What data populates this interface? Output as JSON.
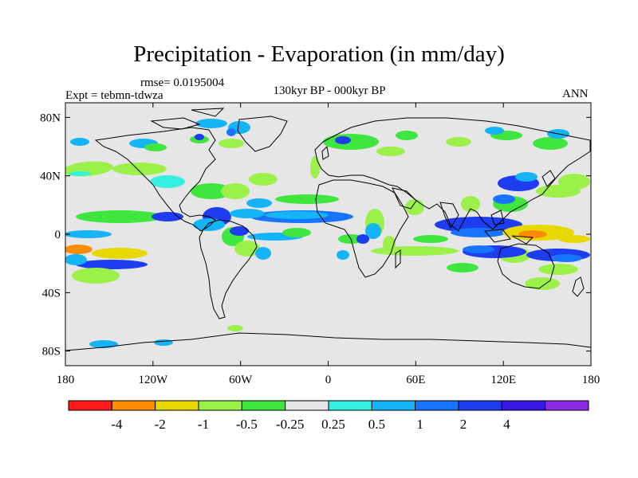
{
  "title": "Precipitation - Evaporation (in mm/day)",
  "rmse": "rmse= 0.0195004",
  "experiment": "Expt = tebmn-tdwza",
  "period": "130kyr BP - 000kyr BP",
  "season": "ANN",
  "axes": {
    "lon_labels": [
      "180",
      "120W",
      "60W",
      "0",
      "60E",
      "120E",
      "180"
    ],
    "lon_values": [
      -180,
      -120,
      -60,
      0,
      60,
      120,
      180
    ],
    "lat_labels": [
      "80N",
      "40N",
      "0",
      "40S",
      "80S"
    ],
    "lat_values": [
      80,
      40,
      0,
      -40,
      -80
    ],
    "lon_range": [
      -180,
      180
    ],
    "lat_range": [
      -90,
      90
    ]
  },
  "colorbar": {
    "colors": [
      "#ff1a1a",
      "#ff8c00",
      "#e6d800",
      "#9cf04a",
      "#3ee63e",
      "#e6e6e6",
      "#34f0e0",
      "#14b4f6",
      "#1874ff",
      "#1e3cf0",
      "#3818e6",
      "#8a2be2"
    ],
    "labels": [
      "-4",
      "-2",
      "-1",
      "-0.5",
      "-0.25",
      "0.25",
      "0.5",
      "1",
      "2",
      "4"
    ]
  },
  "background_color": "#e6e6e6"
}
